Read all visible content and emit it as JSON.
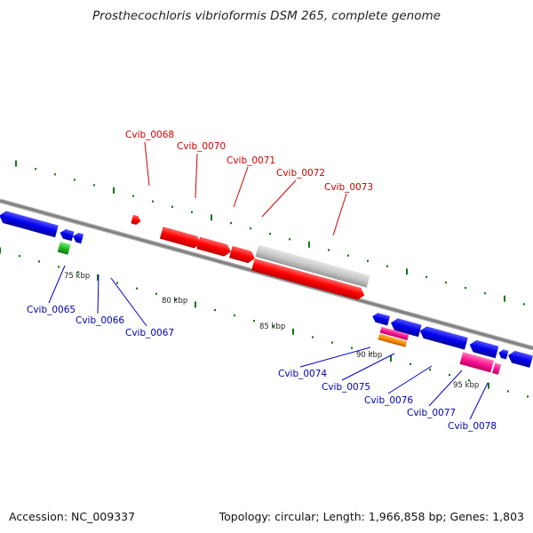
{
  "title": "Prosthecochloris vibrioformis DSM 265, complete genome",
  "accession": "Accession: NC_009337",
  "summary": "Topology: circular; Length: 1,966,858 bp; Genes: 1,803",
  "colors": {
    "forward_gene": "#ff0000",
    "reverse_gene": "#0000ee",
    "pseudo_gene": "#c8c8c8",
    "pink_gene": "#ff1493",
    "orange_gene": "#ff8c00",
    "green_gene": "#22bb22",
    "top_label": "#cc0000",
    "bottom_label": "#0000aa",
    "backbone": "#888888",
    "tick": "#117711"
  },
  "top_genes": [
    {
      "label": "Cvib_0068"
    },
    {
      "label": "Cvib_0070"
    },
    {
      "label": "Cvib_0071"
    },
    {
      "label": "Cvib_0072"
    },
    {
      "label": "Cvib_0073"
    }
  ],
  "bottom_genes": [
    {
      "label": "Cvib_0065"
    },
    {
      "label": "Cvib_0066"
    },
    {
      "label": "Cvib_0067"
    },
    {
      "label": "Cvib_0074"
    },
    {
      "label": "Cvib_0075"
    },
    {
      "label": "Cvib_0076"
    },
    {
      "label": "Cvib_0077"
    },
    {
      "label": "Cvib_0078"
    }
  ],
  "scale_labels": [
    "75 kbp",
    "80 kbp",
    "85 kbp",
    "90 kbp",
    "95 kbp"
  ]
}
